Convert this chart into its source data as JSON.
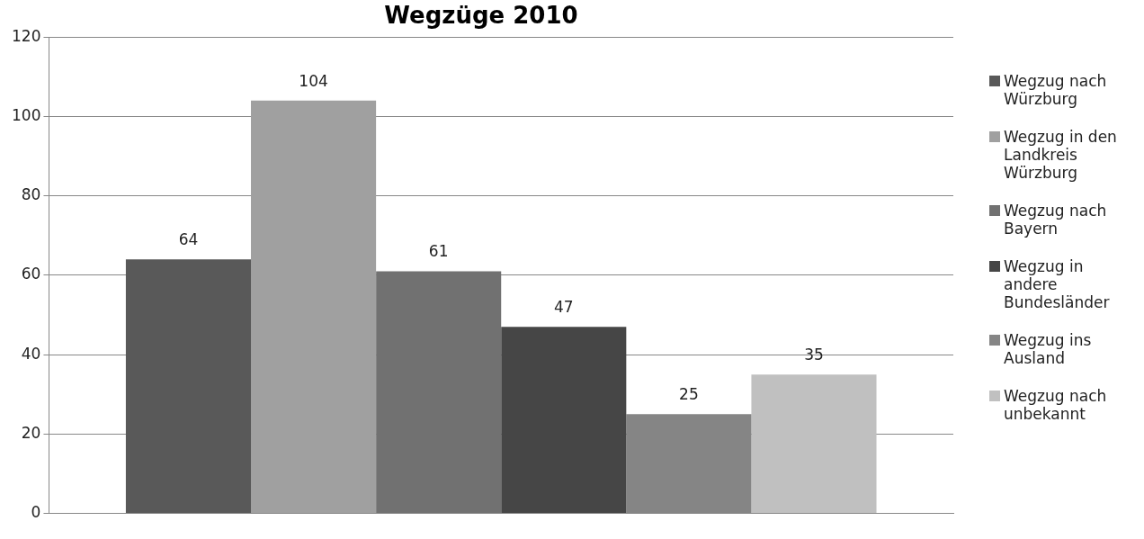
{
  "chart_data": {
    "type": "bar",
    "title": "Wegzüge 2010",
    "categories": [
      null
    ],
    "series": [
      {
        "name": "Wegzug nach Würzburg",
        "color": "#595959",
        "values": [
          64
        ]
      },
      {
        "name": "Wegzug in den Landkreis Würzburg",
        "color": "#a0a0a0",
        "values": [
          104
        ]
      },
      {
        "name": "Wegzug nach Bayern",
        "color": "#717171",
        "values": [
          61
        ]
      },
      {
        "name": "Wegzug in andere Bundesländer",
        "color": "#464646",
        "values": [
          47
        ]
      },
      {
        "name": "Wegzug ins Ausland",
        "color": "#858585",
        "values": [
          25
        ]
      },
      {
        "name": "Wegzug nach unbekannt",
        "color": "#c0c0c0",
        "values": [
          35
        ]
      }
    ],
    "ylim": [
      0,
      120
    ],
    "yticks": [
      0,
      20,
      40,
      60,
      80,
      100,
      120
    ],
    "grid": "y",
    "legend": "right",
    "data_labels": true
  }
}
